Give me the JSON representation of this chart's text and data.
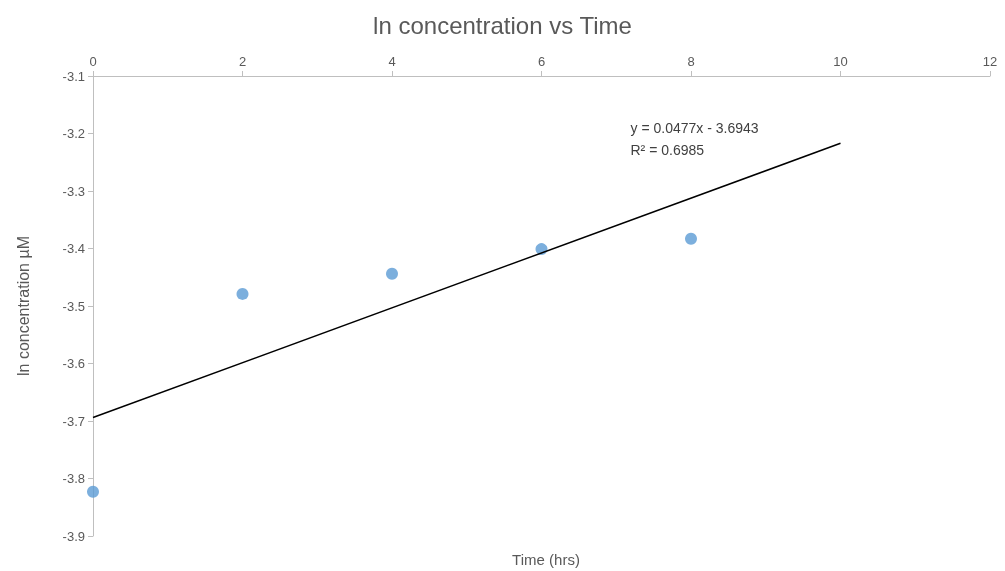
{
  "chart_data": {
    "type": "scatter",
    "title": "ln concentration vs Time",
    "xlabel": "Time (hrs)",
    "ylabel": "ln concentration µM",
    "xlim": [
      0,
      12
    ],
    "xticks": [
      0,
      2,
      4,
      6,
      8,
      10,
      12
    ],
    "ylim": [
      -3.9,
      -3.1
    ],
    "yticks": [
      -3.9,
      -3.8,
      -3.7,
      -3.6,
      -3.5,
      -3.4,
      -3.3,
      -3.2,
      -3.1
    ],
    "marker": "circle",
    "series": [
      {
        "color": "#5b9bd5",
        "x": [
          0,
          2,
          4,
          6,
          8
        ],
        "values": [
          -3.823,
          -3.479,
          -3.444,
          -3.401,
          -3.383
        ]
      },
      {
        "type": "line",
        "color": "#000000",
        "line_style": "solid",
        "marker": "none",
        "x": [
          0,
          10
        ],
        "values": [
          -3.694,
          -3.217
        ]
      }
    ],
    "annotations": [
      "y = 0.0477x - 3.6943",
      "R² = 0.6985"
    ]
  }
}
